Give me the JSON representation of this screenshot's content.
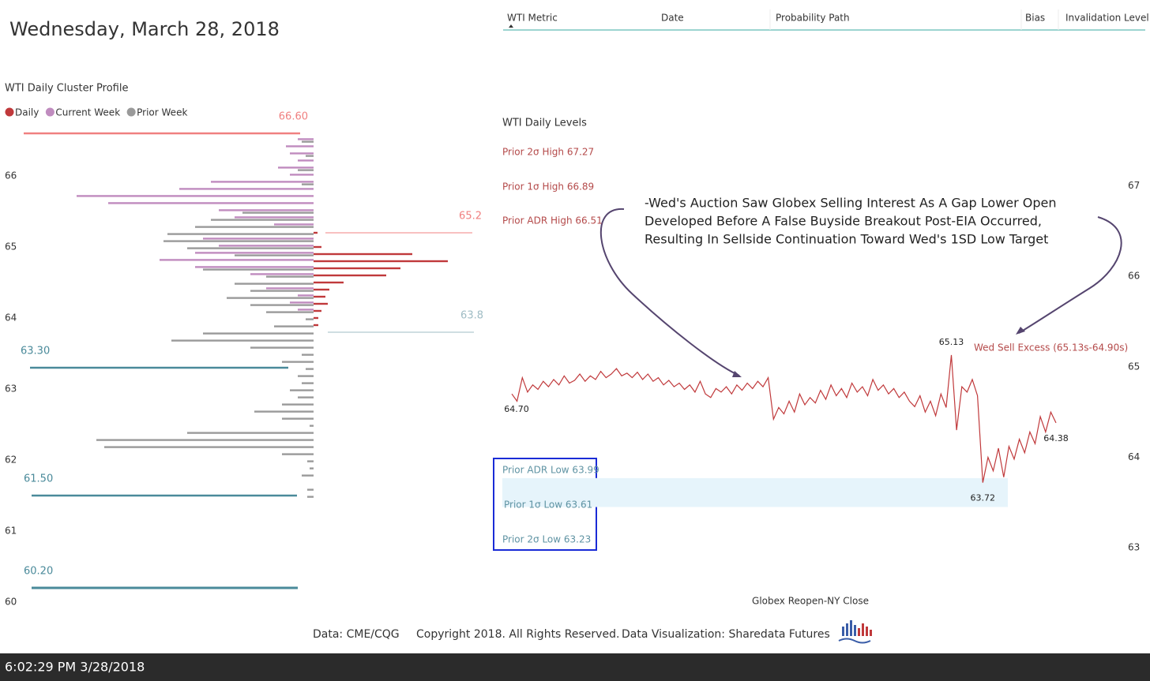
{
  "header": {
    "date": "Wednesday, March 28, 2018"
  },
  "table": {
    "columns": [
      "WTI Metric",
      "Date",
      "Probability Path",
      "Bias",
      "Invalidation Level"
    ]
  },
  "chart_data": [
    {
      "type": "profile",
      "title": "WTI Daily Cluster Profile",
      "prices": [
        66.5,
        66.4,
        66.3,
        66.2,
        66.1,
        66.0,
        65.9,
        65.8,
        65.7,
        65.6,
        65.5,
        65.4,
        65.3,
        65.2,
        65.1,
        65.0,
        64.9,
        64.8,
        64.7,
        64.6,
        64.5,
        64.4,
        64.3,
        64.2,
        64.1,
        64.0,
        63.9,
        63.8,
        63.7,
        63.6,
        63.5,
        63.4,
        63.3,
        63.2,
        63.1,
        63.0,
        62.9,
        62.8,
        62.7,
        62.6,
        62.5,
        62.4,
        62.3,
        62.2,
        62.1,
        62.0,
        61.9,
        61.8,
        61.7,
        61.6,
        61.5
      ],
      "series": [
        {
          "name": "Daily",
          "color": "#c0393b",
          "side": "right",
          "values": [
            0,
            0,
            0,
            0,
            0,
            0,
            0,
            0,
            0,
            0,
            0,
            0,
            0,
            5,
            0,
            10,
            125,
            170,
            110,
            92,
            38,
            20,
            15,
            18,
            10,
            6,
            6,
            0,
            0,
            0,
            0,
            0,
            0,
            0,
            0,
            0,
            0,
            0,
            0,
            0,
            0,
            0,
            0,
            0,
            0,
            0,
            0,
            0,
            0,
            0,
            0
          ]
        },
        {
          "name": "Current Week",
          "color": "#c08cbf",
          "side": "left",
          "values": [
            20,
            35,
            30,
            20,
            45,
            30,
            130,
            170,
            300,
            260,
            120,
            100,
            50,
            0,
            140,
            120,
            150,
            195,
            150,
            80,
            0,
            60,
            20,
            30,
            20,
            0,
            0,
            0,
            0,
            0,
            0,
            0,
            0,
            0,
            0,
            0,
            0,
            0,
            0,
            0,
            0,
            0,
            0,
            0,
            0,
            0,
            0,
            0,
            0,
            0,
            0
          ]
        },
        {
          "name": "Prior Week",
          "color": "#9a9a9a",
          "side": "left",
          "values": [
            15,
            0,
            10,
            0,
            20,
            0,
            15,
            0,
            0,
            0,
            90,
            130,
            150,
            185,
            190,
            160,
            100,
            0,
            140,
            60,
            100,
            80,
            110,
            80,
            60,
            10,
            50,
            140,
            180,
            80,
            15,
            40,
            10,
            20,
            15,
            30,
            20,
            40,
            75,
            40,
            5,
            160,
            275,
            265,
            40,
            8,
            5,
            15,
            0,
            8,
            8
          ]
        }
      ],
      "levels": [
        {
          "value": 66.6,
          "label": "66.60",
          "color": "#f08080"
        },
        {
          "value": 65.2,
          "label": "65.2",
          "color": "#f08080"
        },
        {
          "value": 63.8,
          "label": "63.8",
          "color": "#9fbcc4"
        },
        {
          "value": 63.3,
          "label": "63.30",
          "color": "#4a8a9a"
        },
        {
          "value": 61.5,
          "label": "61.50",
          "color": "#4a8a9a"
        },
        {
          "value": 60.2,
          "label": "60.20",
          "color": "#4a8a9a"
        }
      ],
      "ylim": [
        59.9,
        66.7
      ],
      "yticks": [
        60,
        61,
        62,
        63,
        64,
        65,
        66
      ]
    },
    {
      "type": "line",
      "title": "WTI Daily Levels",
      "level_texts": [
        "Prior 2σ High 67.27",
        "Prior 1σ High 66.89",
        "Prior ADR High 66.51",
        "Prior ADR Low 63.99",
        "Prior 1σ Low 63.61",
        "Prior 2σ Low 63.23"
      ],
      "annotation": [
        "-Wed's Auction Saw Globex Selling Interest As A Gap Lower Open",
        "Developed Before A False Buyside Breakout Post-EIA Occurred,",
        "Resulting In Sellside Continuation Toward Wed's 1SD Low Target"
      ],
      "excess_label": "Wed Sell Excess (65.13s-64.90s)",
      "x_label": "Globex Reopen-NY Close",
      "color": "#c0393b",
      "band": [
        63.45,
        63.77
      ],
      "values": [
        64.7,
        64.62,
        64.88,
        64.72,
        64.8,
        64.75,
        64.84,
        64.78,
        64.86,
        64.8,
        64.9,
        64.82,
        64.85,
        64.92,
        64.84,
        64.9,
        64.86,
        64.95,
        64.88,
        64.92,
        64.98,
        64.9,
        64.93,
        64.88,
        64.94,
        64.86,
        64.92,
        64.84,
        64.88,
        64.8,
        64.85,
        64.78,
        64.82,
        64.75,
        64.8,
        64.72,
        64.84,
        64.7,
        64.66,
        64.76,
        64.72,
        64.78,
        64.7,
        64.8,
        64.74,
        64.82,
        64.76,
        64.84,
        64.78,
        64.88,
        64.42,
        64.55,
        64.48,
        64.62,
        64.5,
        64.7,
        64.58,
        64.66,
        64.6,
        64.74,
        64.64,
        64.8,
        64.68,
        64.76,
        64.66,
        64.82,
        64.72,
        64.78,
        64.68,
        64.86,
        64.74,
        64.8,
        64.7,
        64.76,
        64.66,
        64.72,
        64.62,
        64.56,
        64.68,
        64.5,
        64.62,
        64.46,
        64.7,
        64.55,
        65.13,
        64.3,
        64.78,
        64.72,
        64.86,
        64.68,
        63.72,
        64.0,
        63.85,
        64.1,
        63.78,
        64.12,
        63.98,
        64.2,
        64.05,
        64.28,
        64.15,
        64.45,
        64.28,
        64.5,
        64.38
      ],
      "value_labels": [
        "64.70",
        null,
        null,
        null,
        null,
        null,
        null,
        null,
        null,
        null,
        null,
        null,
        null,
        null,
        null,
        null,
        null,
        null,
        null,
        null,
        null,
        null,
        null,
        null,
        null,
        null,
        null,
        null,
        null,
        null,
        null,
        null,
        null,
        null,
        null,
        null,
        null,
        null,
        null,
        null,
        null,
        null,
        null,
        null,
        null,
        null,
        null,
        null,
        null,
        null,
        null,
        null,
        null,
        null,
        null,
        null,
        null,
        null,
        null,
        null,
        null,
        null,
        null,
        null,
        null,
        null,
        null,
        null,
        null,
        null,
        null,
        null,
        null,
        null,
        null,
        null,
        null,
        null,
        null,
        null,
        null,
        null,
        null,
        null,
        "65.13",
        null,
        null,
        null,
        null,
        null,
        "63.72",
        null,
        null,
        null,
        null,
        null,
        null,
        null,
        null,
        null,
        null,
        null,
        null,
        null,
        "64.38"
      ],
      "ylim": [
        62.6,
        67.31
      ],
      "yticks": [
        63,
        64,
        65,
        66,
        67
      ]
    }
  ],
  "footer": {
    "source": "Data: CME/CQG",
    "copyright": "Copyright 2018. All Rights Reserved.",
    "credit": "Data Visualization: Sharedata Futures"
  },
  "status": {
    "timestamp": "6:02:29 PM 3/28/2018"
  }
}
